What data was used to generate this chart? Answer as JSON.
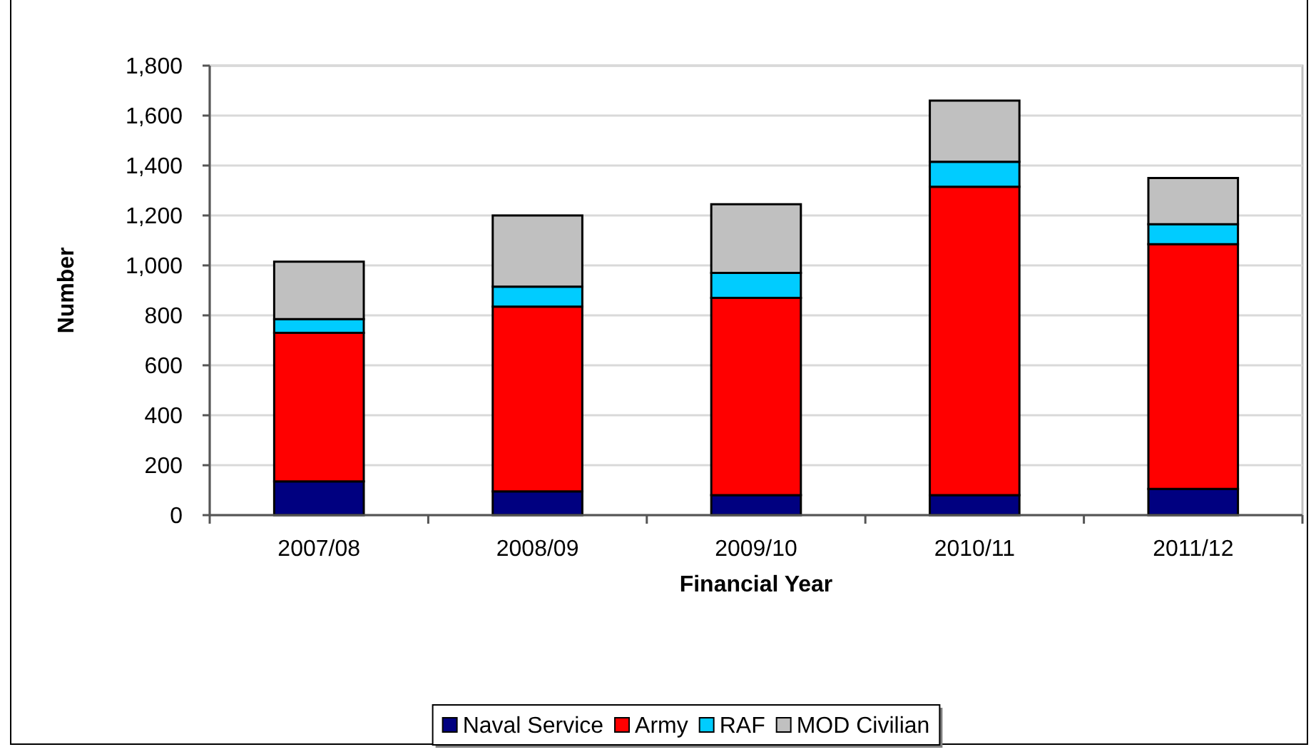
{
  "chart_data": {
    "type": "bar",
    "stacked": true,
    "xlabel": "Financial Year",
    "ylabel": "Number",
    "categories": [
      "2007/08",
      "2008/09",
      "2009/10",
      "2010/11",
      "2011/12"
    ],
    "series": [
      {
        "name": "Naval Service",
        "color": "#000080",
        "values": [
          135,
          95,
          80,
          80,
          105
        ]
      },
      {
        "name": "Army",
        "color": "#ff0000",
        "values": [
          595,
          740,
          790,
          1235,
          980
        ]
      },
      {
        "name": "RAF",
        "color": "#00ccff",
        "values": [
          55,
          80,
          100,
          100,
          80
        ]
      },
      {
        "name": "MOD Civilian",
        "color": "#c0c0c0",
        "values": [
          230,
          285,
          275,
          245,
          185
        ]
      }
    ],
    "ylim": [
      0,
      1800
    ],
    "yticks": [
      {
        "value": 0,
        "label": "0"
      },
      {
        "value": 200,
        "label": "200"
      },
      {
        "value": 400,
        "label": "400"
      },
      {
        "value": 600,
        "label": "600"
      },
      {
        "value": 800,
        "label": "800"
      },
      {
        "value": 1000,
        "label": "1,000"
      },
      {
        "value": 1200,
        "label": "1,200"
      },
      {
        "value": 1400,
        "label": "1,400"
      },
      {
        "value": 1600,
        "label": "1,600"
      },
      {
        "value": 1800,
        "label": "1,800"
      }
    ],
    "grid": "y",
    "legend": "bottom"
  }
}
